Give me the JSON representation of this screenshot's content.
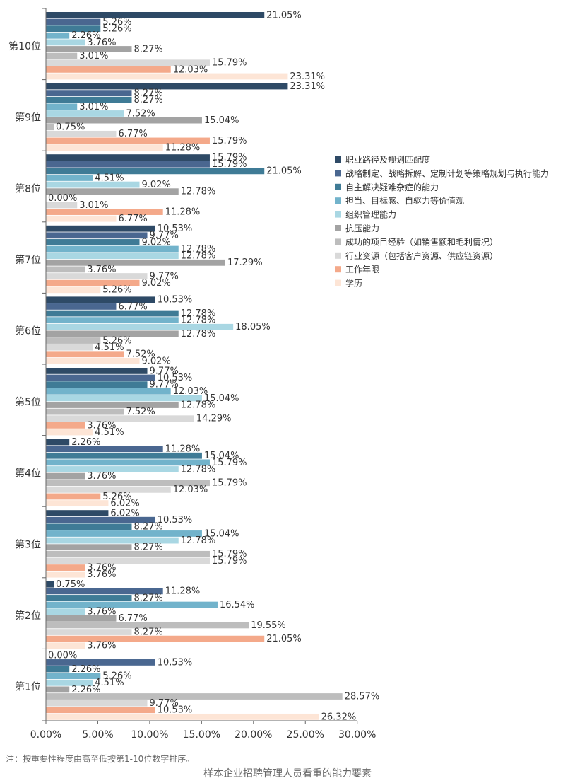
{
  "chart_data": {
    "type": "bar",
    "orientation": "horizontal",
    "title": "样本企业招聘管理人员看重的能力要素",
    "note": "注：按重要性程度由高至低按第1-10位数字排序。",
    "categories": [
      "第10位",
      "第9位",
      "第8位",
      "第7位",
      "第6位",
      "第5位",
      "第4位",
      "第3位",
      "第2位",
      "第1位"
    ],
    "xlim": [
      0,
      30
    ],
    "x_ticks": [
      "0.00%",
      "5.00%",
      "10.00%",
      "15.00%",
      "20.00%",
      "25.00%",
      "30.00%"
    ],
    "grid": false,
    "legend_position": "right",
    "series": [
      {
        "name": "职业路径及规划匹配度",
        "color": "#2e4a66",
        "values": [
          21.05,
          23.31,
          15.79,
          10.53,
          10.53,
          9.77,
          2.26,
          6.02,
          0.75,
          0.0
        ]
      },
      {
        "name": "战略制定、战略拆解、定制计划等策略规划与执行能力",
        "color": "#4a6790",
        "values": [
          5.26,
          8.27,
          15.79,
          9.77,
          6.77,
          10.53,
          11.28,
          10.53,
          11.28,
          10.53
        ]
      },
      {
        "name": "自主解决疑难杂症的能力",
        "color": "#3f7b96",
        "values": [
          5.26,
          8.27,
          21.05,
          9.02,
          12.78,
          9.77,
          15.04,
          8.27,
          8.27,
          2.26
        ]
      },
      {
        "name": "担当、目标感、自驱力等价值观",
        "color": "#72b3cb",
        "values": [
          2.26,
          3.01,
          4.51,
          12.78,
          12.78,
          12.03,
          15.79,
          15.04,
          16.54,
          5.26
        ]
      },
      {
        "name": "组织管理能力",
        "color": "#a9d7e3",
        "values": [
          3.76,
          7.52,
          9.02,
          12.78,
          18.05,
          15.04,
          12.78,
          12.78,
          3.76,
          4.51
        ]
      },
      {
        "name": "抗压能力",
        "color": "#a3a3a3",
        "values": [
          8.27,
          15.04,
          12.78,
          17.29,
          12.78,
          12.78,
          3.76,
          8.27,
          6.77,
          2.26
        ]
      },
      {
        "name": "成功的项目经验（如销售额和毛利情况）",
        "color": "#bdbdbd",
        "values": [
          3.01,
          0.75,
          0.0,
          3.76,
          5.26,
          7.52,
          15.79,
          15.79,
          19.55,
          28.57
        ]
      },
      {
        "name": "行业资源（包括客户资源、供应链资源）",
        "color": "#d9d9d9",
        "values": [
          15.79,
          6.77,
          3.01,
          9.77,
          4.51,
          14.29,
          12.03,
          15.79,
          8.27,
          9.77
        ]
      },
      {
        "name": "工作年限",
        "color": "#f4a98a",
        "values": [
          12.03,
          15.79,
          11.28,
          9.02,
          7.52,
          3.76,
          5.26,
          3.76,
          21.05,
          10.53
        ]
      },
      {
        "name": "学历",
        "color": "#fde5d6",
        "values": [
          23.31,
          11.28,
          6.77,
          5.26,
          9.02,
          4.51,
          6.02,
          3.76,
          3.76,
          26.32
        ]
      }
    ]
  }
}
